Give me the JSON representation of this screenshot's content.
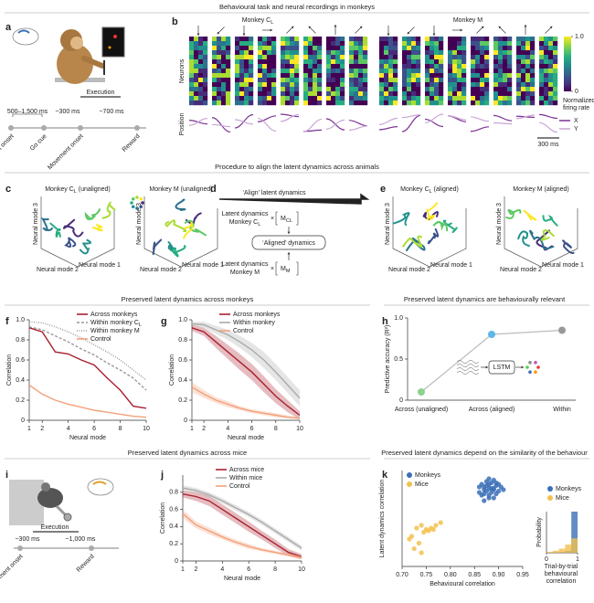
{
  "headings": [
    "Behavioural task and neural recordings in monkeys",
    "Procedure to align the latent dynamics across animals",
    "Preserved latent dynamics across monkeys",
    "Preserved latent dynamics are behaviourally relevant",
    "Preserved latent dynamics across mice",
    "Preserved latent dynamics depend on the similarity of the behaviour"
  ],
  "letters": [
    "a",
    "b",
    "c",
    "d",
    "e",
    "f",
    "g",
    "h",
    "i",
    "j",
    "k"
  ],
  "panel_a": {
    "interval": "500–1,500 ms",
    "execution": "Execution",
    "t1": "~300 ms",
    "t2": "~700 ms",
    "events": [
      "Target onset",
      "Go cue",
      "Movement onset",
      "Reward"
    ]
  },
  "panel_b": {
    "monkeys": [
      {
        "name": "Monkey C",
        "sub": "L"
      },
      {
        "name": "Monkey M"
      }
    ],
    "neurons": "Neurons",
    "position": "Position",
    "colorbar": {
      "lim": [
        0,
        1
      ],
      "ticks": [
        {
          "value": 1,
          "label": "1.0"
        },
        0
      ],
      "label": [
        "Normalized",
        "firing rate"
      ]
    },
    "legend": [
      "X",
      "Y"
    ],
    "scale": "300 ms"
  },
  "panel_c": {
    "titles": [
      {
        "name": "Monkey C",
        "sub": "L",
        "tail": " (unaligned)"
      },
      {
        "name": "Monkey M (unaligned)"
      }
    ],
    "modes": [
      "Neural mode 1",
      "Neural mode 2",
      "Neural mode 3"
    ]
  },
  "panel_d": {
    "title": "‘Align’ latent dynamics",
    "latent": "Latent dynamics",
    "monkey1": "Monkey C",
    "monkey1_sub": "L",
    "times": "×",
    "matrix": "M",
    "matrix1_sub": "CL",
    "aligned": "‘Aligned’ dynamics",
    "monkey2": "Monkey M",
    "matrix2_sub": "M"
  },
  "panel_e": {
    "titles": [
      {
        "name": "Monkey C",
        "sub": "L",
        "tail": " (aligned)"
      },
      {
        "name": "Monkey M (aligned)"
      }
    ]
  },
  "panel_i": {
    "execution": "Execution",
    "t1": "~300 ms",
    "t2": "~1,000 ms",
    "events": [
      "Movement onset",
      "Reward"
    ]
  },
  "chart_data": [
    {
      "type": "line",
      "xlabel": "Neural mode",
      "ylabel": "Correlation",
      "x": [
        1,
        2,
        3,
        4,
        5,
        6,
        7,
        8,
        9,
        10
      ],
      "xlim": [
        1,
        10
      ],
      "xticks": [
        1,
        2,
        4,
        6,
        8,
        10
      ],
      "ylim": [
        0,
        1
      ],
      "yticks": [
        0,
        0.2,
        0.4,
        0.6,
        0.8,
        {
          "value": 1,
          "label": "1.0"
        }
      ],
      "series": [
        {
          "name": "Across monkeys",
          "color": "#a8202f",
          "style": "solid",
          "values": [
            0.92,
            0.88,
            0.68,
            0.66,
            0.6,
            0.55,
            0.42,
            0.3,
            0.14,
            0.12
          ]
        },
        {
          "name": "Within monkey C",
          "name_sub": "L",
          "color": "#999999",
          "style": "dashed",
          "values": [
            0.93,
            0.9,
            0.84,
            0.78,
            0.71,
            0.65,
            0.57,
            0.5,
            0.42,
            0.3
          ]
        },
        {
          "name": "Within monkey M",
          "color": "#999999",
          "style": "dotted",
          "values": [
            0.98,
            0.97,
            0.93,
            0.88,
            0.82,
            0.75,
            0.68,
            0.6,
            0.5,
            0.4
          ]
        },
        {
          "name": "Control",
          "color": "#f3a07a",
          "style": "solid",
          "values": [
            0.35,
            0.26,
            0.2,
            0.16,
            0.13,
            0.1,
            0.08,
            0.06,
            0.04,
            0.03
          ]
        }
      ]
    },
    {
      "type": "line",
      "xlabel": "Neural mode",
      "ylabel": "Correlation",
      "x": [
        1,
        2,
        3,
        4,
        5,
        6,
        7,
        8,
        9,
        10
      ],
      "xlim": [
        1,
        10
      ],
      "xticks": [
        1,
        2,
        4,
        6,
        8,
        10
      ],
      "ylim": [
        0,
        1
      ],
      "yticks": [
        0,
        0.2,
        0.4,
        0.6,
        0.8,
        {
          "value": 1,
          "label": "1.0"
        }
      ],
      "series": [
        {
          "name": "Across monkeys",
          "color": "#a8202f",
          "style": "solid",
          "values": [
            0.92,
            0.88,
            0.78,
            0.68,
            0.58,
            0.48,
            0.36,
            0.24,
            0.14,
            0.05
          ],
          "lower": [
            0.89,
            0.84,
            0.72,
            0.61,
            0.5,
            0.4,
            0.28,
            0.17,
            0.08,
            0.01
          ],
          "upper": [
            0.95,
            0.92,
            0.84,
            0.75,
            0.66,
            0.56,
            0.44,
            0.31,
            0.2,
            0.09
          ]
        },
        {
          "name": "Within monkey",
          "color": "#aaaaaa",
          "style": "solid",
          "values": [
            0.96,
            0.95,
            0.9,
            0.85,
            0.78,
            0.7,
            0.6,
            0.48,
            0.35,
            0.22
          ],
          "lower": [
            0.94,
            0.92,
            0.86,
            0.8,
            0.72,
            0.63,
            0.52,
            0.4,
            0.27,
            0.14
          ],
          "upper": [
            0.98,
            0.98,
            0.94,
            0.9,
            0.84,
            0.77,
            0.68,
            0.56,
            0.43,
            0.3
          ]
        },
        {
          "name": "Control",
          "color": "#f3a07a",
          "style": "solid",
          "values": [
            0.33,
            0.26,
            0.2,
            0.16,
            0.12,
            0.09,
            0.07,
            0.05,
            0.03,
            0.02
          ],
          "lower": [
            0.28,
            0.22,
            0.17,
            0.13,
            0.1,
            0.07,
            0.05,
            0.03,
            0.02,
            0.01
          ],
          "upper": [
            0.38,
            0.3,
            0.23,
            0.19,
            0.14,
            0.11,
            0.09,
            0.07,
            0.05,
            0.03
          ]
        }
      ]
    },
    {
      "type": "point",
      "ylabel": "Predictive accuracy (R²)",
      "categories": [
        "Across (unaligned)",
        "Across (aligned)",
        "Within"
      ],
      "values": [
        0.1,
        0.8,
        0.85
      ],
      "colors": [
        "#8fd18f",
        "#5bb8e8",
        "#999999"
      ],
      "ylim": [
        0,
        1
      ],
      "yticks": [
        0,
        0.5,
        {
          "value": 1,
          "label": "1.0"
        }
      ],
      "annotation": "LSTM"
    },
    {
      "type": "line",
      "xlabel": "Neural mode",
      "ylabel": "Correlation",
      "x": [
        1,
        2,
        3,
        4,
        5,
        6,
        7,
        8,
        9,
        10
      ],
      "xlim": [
        1,
        10
      ],
      "xticks": [
        1,
        2,
        4,
        6,
        8,
        10
      ],
      "ylim": [
        0,
        1
      ],
      "yticks": [
        0,
        0.2,
        0.4,
        0.6,
        0.8
      ],
      "series": [
        {
          "name": "Across mice",
          "color": "#a8202f",
          "style": "solid",
          "values": [
            0.78,
            0.75,
            0.7,
            0.6,
            0.5,
            0.4,
            0.3,
            0.2,
            0.1,
            0.05
          ],
          "lower": [
            0.74,
            0.7,
            0.64,
            0.54,
            0.44,
            0.34,
            0.25,
            0.15,
            0.06,
            0.02
          ],
          "upper": [
            0.82,
            0.8,
            0.76,
            0.66,
            0.56,
            0.46,
            0.35,
            0.25,
            0.14,
            0.08
          ]
        },
        {
          "name": "Within mice",
          "color": "#aaaaaa",
          "style": "solid",
          "values": [
            0.85,
            0.82,
            0.77,
            0.7,
            0.62,
            0.54,
            0.45,
            0.35,
            0.25,
            0.15
          ],
          "lower": [
            0.82,
            0.79,
            0.74,
            0.67,
            0.59,
            0.51,
            0.42,
            0.32,
            0.22,
            0.12
          ],
          "upper": [
            0.88,
            0.85,
            0.8,
            0.73,
            0.65,
            0.57,
            0.48,
            0.38,
            0.28,
            0.18
          ]
        },
        {
          "name": "Control",
          "color": "#f3a07a",
          "style": "solid",
          "values": [
            0.55,
            0.42,
            0.35,
            0.28,
            0.22,
            0.17,
            0.13,
            0.1,
            0.07,
            0.04
          ],
          "lower": [
            0.5,
            0.38,
            0.31,
            0.25,
            0.19,
            0.14,
            0.11,
            0.08,
            0.05,
            0.02
          ],
          "upper": [
            0.6,
            0.46,
            0.39,
            0.31,
            0.25,
            0.2,
            0.15,
            0.12,
            0.09,
            0.06
          ]
        }
      ]
    },
    {
      "type": "scatter",
      "xlabel": "Behavioural correlation",
      "ylabel": "Latent dynamics correlation",
      "xlim": [
        0.7,
        0.95
      ],
      "xticks": [
        {
          "value": 0.7,
          "label": "0.70"
        },
        0.75,
        {
          "value": 0.8,
          "label": "0.80"
        },
        0.85,
        {
          "value": 0.9,
          "label": "0.90"
        },
        0.95
      ],
      "ylim": [
        0.3,
        1
      ],
      "series": [
        {
          "name": "Monkeys",
          "color": "#3a6fb7",
          "x": [
            0.87,
            0.88,
            0.89,
            0.86,
            0.875,
            0.885,
            0.895,
            0.9,
            0.88,
            0.87,
            0.865,
            0.89,
            0.905,
            0.88,
            0.875,
            0.885,
            0.895,
            0.86,
            0.87,
            0.9,
            0.89,
            0.88,
            0.885,
            0.875,
            0.91,
            0.865,
            0.895,
            0.88,
            0.87,
            0.89
          ],
          "y": [
            0.88,
            0.9,
            0.86,
            0.84,
            0.92,
            0.87,
            0.89,
            0.85,
            0.82,
            0.86,
            0.9,
            0.93,
            0.88,
            0.8,
            0.85,
            0.91,
            0.83,
            0.88,
            0.78,
            0.9,
            0.87,
            0.94,
            0.84,
            0.89,
            0.86,
            0.82,
            0.91,
            0.87,
            0.83,
            0.8
          ]
        },
        {
          "name": "Mice",
          "color": "#f2c14e",
          "x": [
            0.72,
            0.73,
            0.74,
            0.75,
            0.745,
            0.76,
            0.735,
            0.725,
            0.77,
            0.78,
            0.755,
            0.715,
            0.74,
            0.765
          ],
          "y": [
            0.52,
            0.58,
            0.6,
            0.57,
            0.55,
            0.58,
            0.47,
            0.43,
            0.6,
            0.62,
            0.56,
            0.5,
            0.4,
            0.57
          ]
        }
      ],
      "inset": {
        "ylabel": "Probability",
        "xlabel": [
          "Trial-by-trial",
          "behavioural",
          "correlation"
        ],
        "xlim": [
          0,
          1
        ],
        "xticks": [
          0,
          1
        ],
        "ylim": [
          0,
          1
        ],
        "bins": [
          0,
          0.2,
          0.4,
          0.6,
          0.8,
          1
        ],
        "series": [
          {
            "name": "Monkeys",
            "color": "#3a6fb7",
            "values": [
              0,
              0,
              0.02,
              0.05,
              1
            ]
          },
          {
            "name": "Mice",
            "color": "#f2c14e",
            "values": [
              0.02,
              0.05,
              0.1,
              0.2,
              0.35
            ]
          }
        ]
      }
    }
  ]
}
